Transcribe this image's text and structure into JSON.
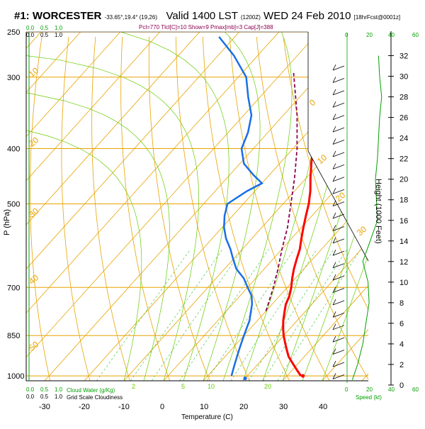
{
  "header": {
    "station": "#1: WORCESTER",
    "coords": "-33.65°,19.4° (19,26)",
    "valid": "Valid 1400 LST",
    "utc": "(1200Z)",
    "date": "WED 24 Feb 2010",
    "forecast": "[18hrFcst@0001z]",
    "indices": "Pcl=770 Tlcl[C]=10 Show=9 Pmax[mb]=3 Cap[J]=388"
  },
  "chart_data": {
    "type": "skew-t",
    "xlabel": "Temperature (C)",
    "ylabel": "P (hPa)",
    "y2label": "Height (1000 Feet)",
    "temperature_ticks": [
      -30,
      -20,
      -10,
      0,
      10,
      20,
      30,
      40
    ],
    "pressure_ticks": [
      250,
      300,
      400,
      500,
      700,
      850,
      1000
    ],
    "height_ticks": [
      0,
      2,
      4,
      6,
      8,
      10,
      12,
      14,
      16,
      18,
      20,
      22,
      24,
      26,
      28,
      30,
      32
    ],
    "plim": [
      250,
      1020
    ],
    "tlim": [
      -30,
      45
    ],
    "mixing_ratio_labels": [
      "2",
      "5",
      "10",
      "20"
    ],
    "dry_adiabat_labels": [
      "0",
      "10",
      "20",
      "30",
      "-10",
      "-20",
      "-30",
      "-40",
      "-50"
    ],
    "cloud_scale_top": [
      "0.0",
      "0.5",
      "1.0"
    ],
    "cloud_scale_bottom": [
      "0.0",
      "0.5",
      "1.0"
    ],
    "cloud_legend": [
      "Cloud Water (g/Kg)",
      "Grid Scale Cloudiness"
    ],
    "speed_ticks": [
      "0",
      "20",
      "40",
      "60"
    ],
    "speed_label": "Speed (kt)",
    "temperature_profile": [
      {
        "p": 1000,
        "t": 33.5
      },
      {
        "p": 975,
        "t": 31
      },
      {
        "p": 950,
        "t": 28.5
      },
      {
        "p": 925,
        "t": 26
      },
      {
        "p": 900,
        "t": 24
      },
      {
        "p": 875,
        "t": 22
      },
      {
        "p": 850,
        "t": 20
      },
      {
        "p": 825,
        "t": 18.2
      },
      {
        "p": 800,
        "t": 16.5
      },
      {
        "p": 775,
        "t": 15
      },
      {
        "p": 750,
        "t": 13.5
      },
      {
        "p": 725,
        "t": 12.5
      },
      {
        "p": 700,
        "t": 11
      },
      {
        "p": 675,
        "t": 9.2
      },
      {
        "p": 650,
        "t": 7.5
      },
      {
        "p": 625,
        "t": 6
      },
      {
        "p": 600,
        "t": 4.5
      },
      {
        "p": 575,
        "t": 2.5
      },
      {
        "p": 550,
        "t": 0.5
      },
      {
        "p": 525,
        "t": -1.5
      },
      {
        "p": 500,
        "t": -3.5
      },
      {
        "p": 475,
        "t": -6
      },
      {
        "p": 450,
        "t": -9
      },
      {
        "p": 425,
        "t": -12
      },
      {
        "p": 400,
        "t": -15
      },
      {
        "p": 375,
        "t": -18.5
      },
      {
        "p": 350,
        "t": -22
      },
      {
        "p": 325,
        "t": -26
      },
      {
        "p": 300,
        "t": -30
      },
      {
        "p": 275,
        "t": -34
      },
      {
        "p": 255,
        "t": -37
      }
    ],
    "dewpoint_profile": [
      {
        "p": 1000,
        "t": 16
      },
      {
        "p": 975,
        "t": 15
      },
      {
        "p": 950,
        "t": 14
      },
      {
        "p": 925,
        "t": 13
      },
      {
        "p": 900,
        "t": 12
      },
      {
        "p": 875,
        "t": 11
      },
      {
        "p": 850,
        "t": 10
      },
      {
        "p": 825,
        "t": 9
      },
      {
        "p": 800,
        "t": 8
      },
      {
        "p": 775,
        "t": 6.5
      },
      {
        "p": 750,
        "t": 5
      },
      {
        "p": 725,
        "t": 3
      },
      {
        "p": 700,
        "t": 0
      },
      {
        "p": 675,
        "t": -3
      },
      {
        "p": 650,
        "t": -7
      },
      {
        "p": 625,
        "t": -10
      },
      {
        "p": 600,
        "t": -13
      },
      {
        "p": 575,
        "t": -16.5
      },
      {
        "p": 550,
        "t": -19.5
      },
      {
        "p": 525,
        "t": -22
      },
      {
        "p": 500,
        "t": -24
      },
      {
        "p": 475,
        "t": -22
      },
      {
        "p": 460,
        "t": -20
      },
      {
        "p": 445,
        "t": -24
      },
      {
        "p": 425,
        "t": -29
      },
      {
        "p": 400,
        "t": -33
      },
      {
        "p": 375,
        "t": -35
      },
      {
        "p": 350,
        "t": -38
      },
      {
        "p": 325,
        "t": -43
      },
      {
        "p": 300,
        "t": -48
      },
      {
        "p": 275,
        "t": -56
      },
      {
        "p": 255,
        "t": -64
      }
    ],
    "parcel_profile": [
      {
        "p": 770,
        "t": 10
      },
      {
        "p": 700,
        "t": 6.5
      },
      {
        "p": 650,
        "t": 3.5
      },
      {
        "p": 600,
        "t": 0
      },
      {
        "p": 550,
        "t": -3.5
      },
      {
        "p": 500,
        "t": -8
      },
      {
        "p": 450,
        "t": -13
      },
      {
        "p": 400,
        "t": -19
      },
      {
        "p": 350,
        "t": -26.5
      },
      {
        "p": 320,
        "t": -32
      },
      {
        "p": 295,
        "t": -37
      }
    ],
    "surface_temperature": 34,
    "surface_dewpoint": 20,
    "wind_speed_profile": [
      {
        "h": 0.5,
        "s": 5
      },
      {
        "h": 2,
        "s": 10
      },
      {
        "h": 4,
        "s": 15
      },
      {
        "h": 6,
        "s": 18
      },
      {
        "h": 8,
        "s": 21
      },
      {
        "h": 10,
        "s": 20
      },
      {
        "h": 12,
        "s": 15
      },
      {
        "h": 14,
        "s": 22
      },
      {
        "h": 16,
        "s": 29
      },
      {
        "h": 18,
        "s": 28
      },
      {
        "h": 20,
        "s": 27
      },
      {
        "h": 22,
        "s": 29
      },
      {
        "h": 24,
        "s": 30
      },
      {
        "h": 26,
        "s": 31
      },
      {
        "h": 28,
        "s": 33
      },
      {
        "h": 30,
        "s": 31
      },
      {
        "h": 32,
        "s": 30
      }
    ],
    "grid": true
  },
  "colors": {
    "temperature": "#ff0000",
    "dewpoint": "#1a6ee8",
    "parcel": "#8b0050",
    "isotherm_and_adiabat": "#e8a300",
    "moist_adiabat": "#66cc00",
    "mixing_ratio": "#33bb33",
    "axis_green": "#00a000"
  }
}
